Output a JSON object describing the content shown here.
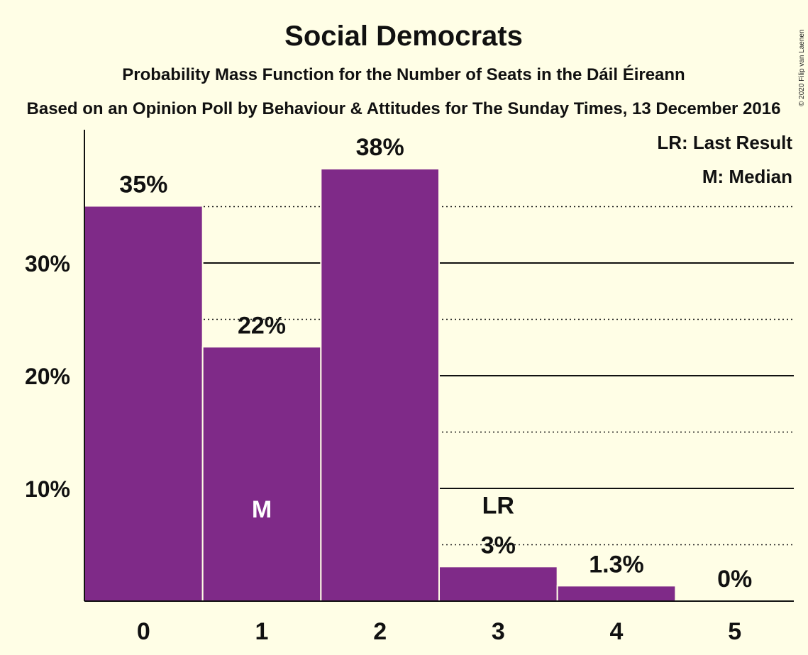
{
  "copyright": "© 2020 Filip van Laenen",
  "legend": {
    "last_result": "LR: Last Result",
    "median": "M: Median"
  },
  "chart_data": {
    "type": "bar",
    "title": "Social Democrats",
    "subtitle": "Probability Mass Function for the Number of Seats in the Dáil Éireann",
    "subtitle2": "Based on an Opinion Poll by Behaviour & Attitudes for The Sunday Times, 13 December 2016",
    "categories": [
      "0",
      "1",
      "2",
      "3",
      "4",
      "5"
    ],
    "values": [
      35,
      22.5,
      38.3,
      3.0,
      1.3,
      0
    ],
    "value_labels": [
      "35%",
      "22%",
      "38%",
      "3%",
      "1.3%",
      "0%"
    ],
    "yticks": [
      10,
      20,
      30
    ],
    "ytick_labels": [
      "10%",
      "20%",
      "30%"
    ],
    "ylim": [
      0,
      42
    ],
    "median_index": 1,
    "median_label": "M",
    "last_result_index": 3,
    "last_result_label": "LR",
    "bar_color": "#7F2A88",
    "grid": true
  }
}
